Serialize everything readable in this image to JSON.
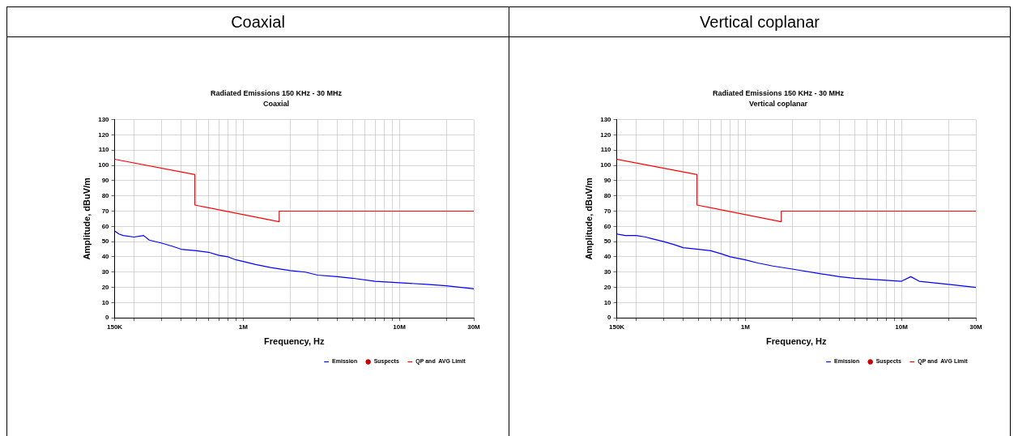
{
  "chart_data": [
    {
      "type": "line",
      "annotations": [
        "Coaxial"
      ],
      "title": "Radiated Emissions 150 KHz - 30 MHz",
      "subtitle": "Coaxial",
      "xlabel": "Frequency, Hz",
      "ylabel": "Amplitude, dBuV/m",
      "log": "x",
      "grid": true,
      "legend": "bottom right",
      "xlim": [
        150000,
        30000000
      ],
      "ylim": [
        0,
        130
      ],
      "xticks": [
        {
          "value": 150000,
          "label": "150K"
        },
        {
          "value": 200000,
          "label": null
        },
        {
          "value": 300000,
          "label": null
        },
        {
          "value": 400000,
          "label": null
        },
        {
          "value": 500000,
          "label": null
        },
        {
          "value": 600000,
          "label": null
        },
        {
          "value": 700000,
          "label": null
        },
        {
          "value": 800000,
          "label": null
        },
        {
          "value": 900000,
          "label": null
        },
        {
          "value": 1000000,
          "label": "1M"
        },
        {
          "value": 2000000,
          "label": null
        },
        {
          "value": 3000000,
          "label": null
        },
        {
          "value": 4000000,
          "label": null
        },
        {
          "value": 5000000,
          "label": null
        },
        {
          "value": 6000000,
          "label": null
        },
        {
          "value": 7000000,
          "label": null
        },
        {
          "value": 8000000,
          "label": null
        },
        {
          "value": 9000000,
          "label": null
        },
        {
          "value": 10000000,
          "label": "10M"
        },
        {
          "value": 20000000,
          "label": null
        },
        {
          "value": 30000000,
          "label": "30M"
        }
      ],
      "yticks": [
        0,
        10,
        20,
        30,
        40,
        50,
        60,
        70,
        80,
        90,
        100,
        110,
        120,
        130
      ],
      "series": [
        {
          "name": "Emission",
          "color": "#0000ff",
          "x": [
            150000,
            160000,
            170000,
            200000,
            230000,
            250000,
            300000,
            350000,
            400000,
            500000,
            600000,
            700000,
            800000,
            900000,
            1000000,
            1200000,
            1500000,
            2000000,
            2500000,
            3000000,
            4000000,
            5000000,
            7000000,
            10000000,
            15000000,
            20000000,
            30000000
          ],
          "values": [
            57,
            55,
            54,
            53,
            54,
            51,
            49,
            47,
            45,
            44,
            43,
            41,
            40,
            38,
            37,
            35,
            33,
            31,
            30,
            28,
            27,
            26,
            24,
            23,
            22,
            21,
            19
          ]
        },
        {
          "name": "Suspects",
          "type": "scatter",
          "color": "#cc0000"
        },
        {
          "name": "QP and  AVG Limit",
          "color": "#ff0000",
          "x": [
            150000,
            490000,
            490000,
            1700000,
            1700000,
            30000000
          ],
          "values": [
            104,
            94,
            74,
            63,
            70,
            70
          ]
        }
      ]
    },
    {
      "type": "line",
      "annotations": [
        "Vertical coplanar"
      ],
      "title": "Radiated Emissions 150 KHz - 30 MHz",
      "subtitle": "Vertical coplanar",
      "xlabel": "Frequency, Hz",
      "ylabel": "Amplitude, dBuV/m",
      "log": "x",
      "grid": true,
      "legend": "bottom right",
      "xlim": [
        150000,
        30000000
      ],
      "ylim": [
        0,
        130
      ],
      "xticks": [
        {
          "value": 150000,
          "label": "150K"
        },
        {
          "value": 200000,
          "label": null
        },
        {
          "value": 300000,
          "label": null
        },
        {
          "value": 400000,
          "label": null
        },
        {
          "value": 500000,
          "label": null
        },
        {
          "value": 600000,
          "label": null
        },
        {
          "value": 700000,
          "label": null
        },
        {
          "value": 800000,
          "label": null
        },
        {
          "value": 900000,
          "label": null
        },
        {
          "value": 1000000,
          "label": "1M"
        },
        {
          "value": 2000000,
          "label": null
        },
        {
          "value": 3000000,
          "label": null
        },
        {
          "value": 4000000,
          "label": null
        },
        {
          "value": 5000000,
          "label": null
        },
        {
          "value": 6000000,
          "label": null
        },
        {
          "value": 7000000,
          "label": null
        },
        {
          "value": 8000000,
          "label": null
        },
        {
          "value": 9000000,
          "label": null
        },
        {
          "value": 10000000,
          "label": "10M"
        },
        {
          "value": 20000000,
          "label": null
        },
        {
          "value": 30000000,
          "label": "30M"
        }
      ],
      "yticks": [
        0,
        10,
        20,
        30,
        40,
        50,
        60,
        70,
        80,
        90,
        100,
        110,
        120,
        130
      ],
      "series": [
        {
          "name": "Emission",
          "color": "#0000ff",
          "x": [
            150000,
            170000,
            200000,
            230000,
            250000,
            300000,
            350000,
            400000,
            500000,
            600000,
            700000,
            800000,
            1000000,
            1200000,
            1500000,
            2000000,
            3000000,
            4000000,
            5000000,
            7000000,
            10000000,
            11500000,
            13000000,
            20000000,
            30000000
          ],
          "values": [
            55,
            54,
            54,
            53,
            52,
            50,
            48,
            46,
            45,
            44,
            42,
            40,
            38,
            36,
            34,
            32,
            29,
            27,
            26,
            25,
            24,
            27,
            24,
            22,
            20
          ]
        },
        {
          "name": "Suspects",
          "type": "scatter",
          "color": "#cc0000"
        },
        {
          "name": "QP and  AVG Limit",
          "color": "#ff0000",
          "x": [
            150000,
            490000,
            490000,
            1700000,
            1700000,
            30000000
          ],
          "values": [
            104,
            94,
            74,
            63,
            70,
            70
          ]
        }
      ]
    }
  ]
}
